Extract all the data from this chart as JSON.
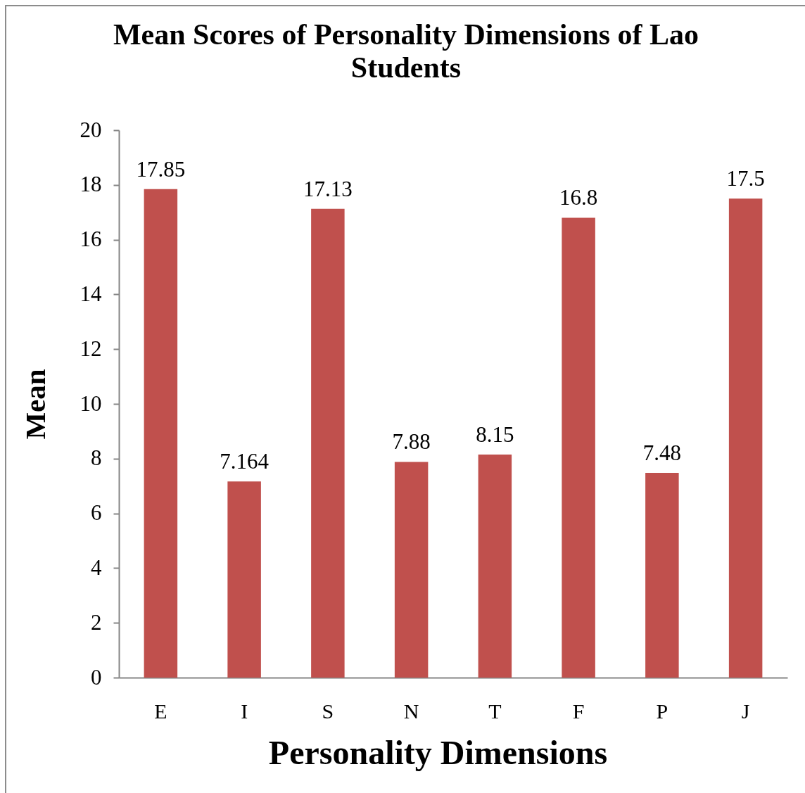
{
  "chart_data": {
    "type": "bar",
    "title": "Mean Scores of Personality Dimensions of Lao Students",
    "xlabel": "Personality Dimensions",
    "ylabel": "Mean",
    "categories": [
      "E",
      "I",
      "S",
      "N",
      "T",
      "F",
      "P",
      "J"
    ],
    "values": [
      17.85,
      7.164,
      17.13,
      7.88,
      8.15,
      16.8,
      7.48,
      17.5
    ],
    "color": "#c0504d",
    "ylim": [
      0,
      20
    ],
    "yticks": [
      0,
      2,
      4,
      6,
      8,
      10,
      12,
      14,
      16,
      18,
      20
    ],
    "data_labels": true
  }
}
